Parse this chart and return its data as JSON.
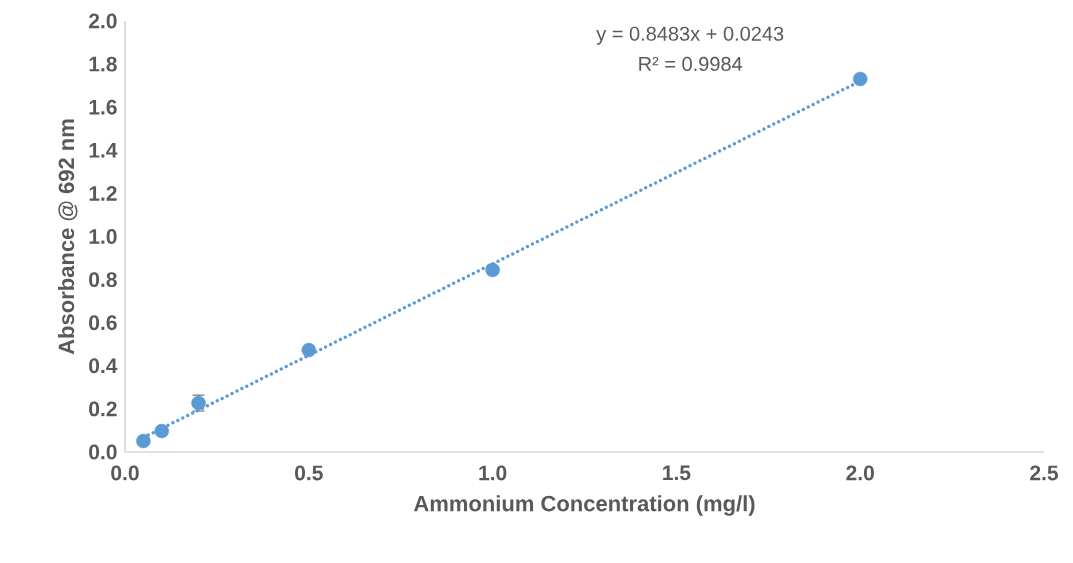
{
  "chart_data": {
    "type": "scatter",
    "xlabel": "Ammonium Concentration (mg/l)",
    "ylabel": "Absorbance @ 692 nm",
    "xlim": [
      0,
      2.5
    ],
    "xticks": [
      {
        "value": 0,
        "label": "0.0"
      },
      0.5,
      {
        "value": 1,
        "label": "1.0"
      },
      1.5,
      {
        "value": 2,
        "label": "2.0"
      },
      2.5
    ],
    "ylim": [
      0,
      2
    ],
    "yticks": [
      {
        "value": 0,
        "label": "0.0"
      },
      0.2,
      0.4,
      0.6,
      0.8,
      {
        "value": 1,
        "label": "1.0"
      },
      1.2,
      1.4,
      1.6,
      1.8,
      {
        "value": 2,
        "label": "2.0"
      }
    ],
    "grid": false,
    "marker": "circle",
    "annotations": [
      "y = 0.8483x + 0.0243",
      "R² = 0.9984"
    ],
    "series": [
      {
        "color": "#5b9bd5",
        "x": [
          0.05,
          0.1,
          0.2,
          0.5,
          1.0,
          2.0
        ],
        "values": [
          0.051,
          0.097,
          0.227,
          0.473,
          0.845,
          1.731
        ],
        "errors": [
          null,
          null,
          0.037,
          null,
          null,
          null
        ]
      },
      {
        "type": "line",
        "marker": "none",
        "color": "#5b9bd5",
        "line_style": "dotted",
        "x": [
          0.05,
          2.0
        ],
        "values": [
          0.067,
          1.721
        ]
      }
    ]
  }
}
